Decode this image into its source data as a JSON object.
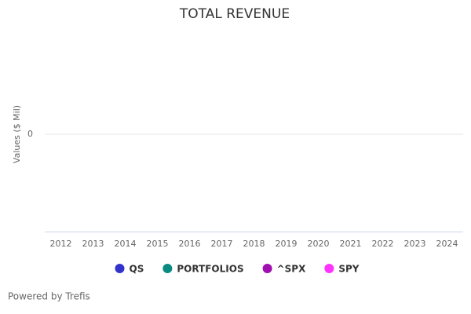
{
  "chart_data": {
    "type": "line",
    "title": "TOTAL REVENUE",
    "y_label": "Values ($ Mil)",
    "credit": "Powered by Trefis",
    "categories": [
      "2012",
      "2013",
      "2014",
      "2015",
      "2016",
      "2017",
      "2018",
      "2019",
      "2020",
      "2021",
      "2022",
      "2023",
      "2024"
    ],
    "series": [
      {
        "name": "QS",
        "color": "#3333cc",
        "values": [
          null,
          null,
          null,
          null,
          null,
          null,
          null,
          null,
          null,
          null,
          null,
          null,
          null
        ]
      },
      {
        "name": "PORTFOLIOS",
        "color": "#0a8a80",
        "values": [
          null,
          null,
          null,
          null,
          null,
          null,
          null,
          null,
          null,
          null,
          null,
          null,
          null
        ]
      },
      {
        "name": "^SPX",
        "color": "#a010b0",
        "values": [
          null,
          null,
          null,
          null,
          null,
          null,
          null,
          null,
          null,
          null,
          null,
          null,
          null
        ]
      },
      {
        "name": "SPY",
        "color": "#ff33ff",
        "values": [
          null,
          null,
          null,
          null,
          null,
          null,
          null,
          null,
          null,
          null,
          null,
          null,
          null
        ]
      }
    ],
    "ylim": [
      -1,
      1
    ],
    "yticks": [
      0
    ],
    "grid": true
  }
}
